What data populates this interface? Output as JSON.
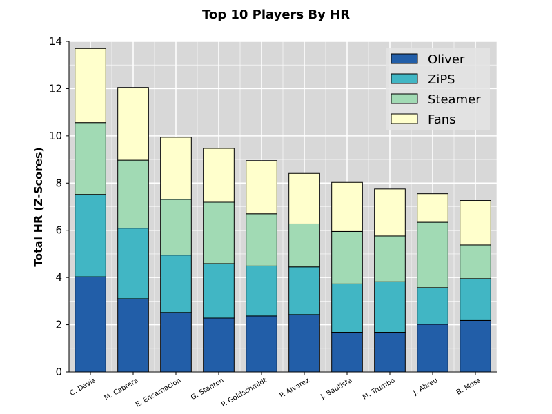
{
  "chart_data": {
    "type": "bar",
    "stacked": true,
    "title": "Top 10 Players By HR",
    "xlabel": "",
    "ylabel": "Total HR (Z-Scores)",
    "ylim": [
      0,
      14
    ],
    "yticks": [
      0,
      2,
      4,
      6,
      8,
      10,
      12,
      14
    ],
    "grid": true,
    "legend_position": "top-right",
    "categories": [
      "C. Davis",
      "M. Cabrera",
      "E. Encarnacion",
      "G. Stanton",
      "P. Goldschmidt",
      "P. Alvarez",
      "J. Bautista",
      "M. Trumbo",
      "J. Abreu",
      "B. Moss"
    ],
    "series": [
      {
        "name": "Oliver",
        "color": "#225ea8",
        "values": [
          4.03,
          3.1,
          2.52,
          2.28,
          2.37,
          2.43,
          1.68,
          1.68,
          2.02,
          2.18
        ]
      },
      {
        "name": "ZiPS",
        "color": "#41b6c4",
        "values": [
          3.49,
          2.99,
          2.43,
          2.31,
          2.12,
          2.02,
          2.05,
          2.14,
          1.55,
          1.77
        ]
      },
      {
        "name": "Steamer",
        "color": "#a1dab4",
        "values": [
          3.04,
          2.88,
          2.36,
          2.6,
          2.21,
          1.82,
          2.22,
          1.94,
          2.77,
          1.43
        ]
      },
      {
        "name": "Fans",
        "color": "#ffffcc",
        "values": [
          3.14,
          3.08,
          2.63,
          2.28,
          2.25,
          2.14,
          2.08,
          1.99,
          1.21,
          1.88
        ]
      }
    ]
  }
}
